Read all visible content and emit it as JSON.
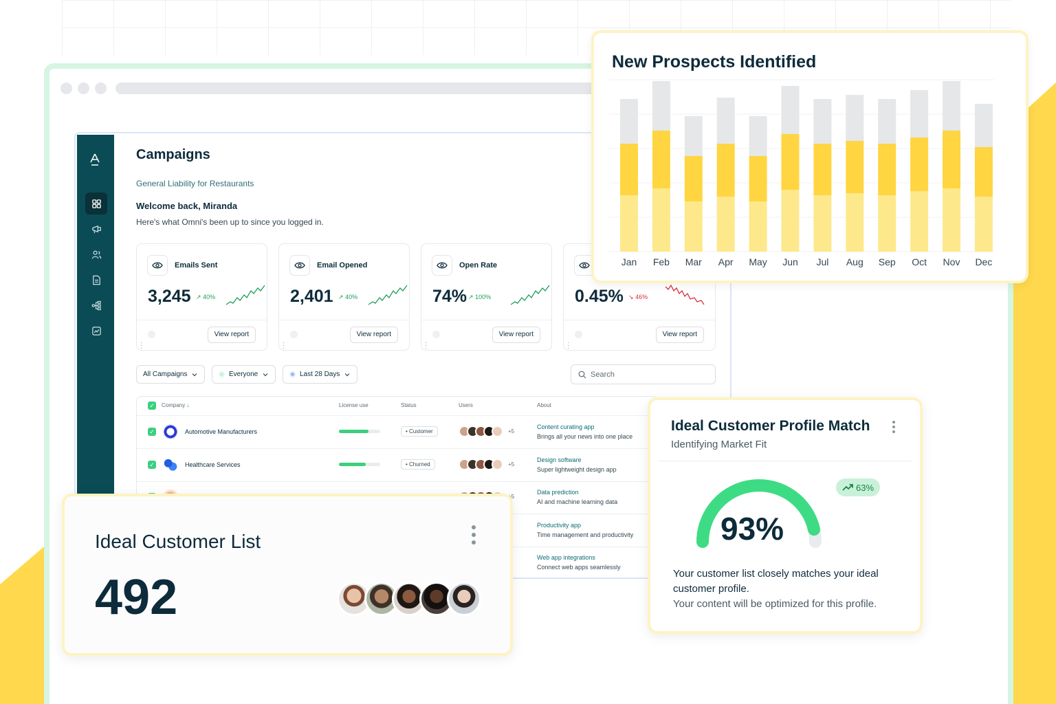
{
  "campaigns": {
    "title": "Campaigns",
    "subtitle": "General Liability for Restaurants",
    "welcome": "Welcome back, Miranda",
    "since": "Here's what Omni's been up to since you logged in."
  },
  "stats": [
    {
      "label": "Emails Sent",
      "value": "3,245",
      "change": "40%",
      "trend": "up",
      "button": "View report"
    },
    {
      "label": "Email Opened",
      "value": "2,401",
      "change": "40%",
      "trend": "up",
      "button": "View report"
    },
    {
      "label": "Open Rate",
      "value": "74%",
      "change": "100%",
      "trend": "up",
      "button": "View report"
    },
    {
      "label": "",
      "value": "0.45%",
      "change": "46%",
      "trend": "down",
      "button": "View report"
    }
  ],
  "filters": {
    "campaigns": "All Campaigns",
    "audience": "Everyone",
    "range": "Last 28 Days",
    "search_placeholder": "Search"
  },
  "table": {
    "headers": {
      "company": "Company",
      "license": "License use",
      "status": "Status",
      "users": "Users",
      "about": "About"
    },
    "rows": [
      {
        "company": "Automotive Manufacturers",
        "license": 0.72,
        "status": "Customer",
        "users_more": "+5",
        "about_title": "Content curating app",
        "about_desc": "Brings all your news into one place"
      },
      {
        "company": "Healthcare Services",
        "license": 0.65,
        "status": "Churned",
        "users_more": "+5",
        "about_title": "Design software",
        "about_desc": "Super lightweight design app"
      },
      {
        "company": "",
        "license": 0,
        "status": "",
        "users_more": "+5",
        "about_title": "Data prediction",
        "about_desc": "AI and machine learning data"
      },
      {
        "company": "",
        "license": 0,
        "status": "",
        "users_more": "",
        "about_title": "Productivity app",
        "about_desc": "Time management and productivity"
      },
      {
        "company": "",
        "license": 0,
        "status": "",
        "users_more": "",
        "about_title": "Web app integrations",
        "about_desc": "Connect web apps seamlessly"
      }
    ]
  },
  "prospects": {
    "title": "New Prospects Identified",
    "chart_data": {
      "type": "bar",
      "stacked": true,
      "categories": [
        "Jan",
        "Feb",
        "Mar",
        "Apr",
        "May",
        "Jun",
        "Jul",
        "Aug",
        "Sep",
        "Oct",
        "Nov",
        "Dec"
      ],
      "series": [
        {
          "values": [
            82,
            92,
            73,
            80,
            73,
            90,
            82,
            85,
            82,
            88,
            92,
            80
          ],
          "color": "#fde98c"
        },
        {
          "values": [
            75,
            84,
            66,
            77,
            66,
            81,
            75,
            76,
            75,
            78,
            84,
            72
          ],
          "color": "#ffd541"
        },
        {
          "values": [
            65,
            72,
            58,
            67,
            58,
            70,
            65,
            67,
            65,
            69,
            72,
            63
          ],
          "color": "#e5e7e8"
        }
      ],
      "ylim": [
        0,
        250
      ],
      "grid": true
    }
  },
  "icl": {
    "title": "Ideal Customer List",
    "count": "492"
  },
  "icp": {
    "title": "Ideal Customer Profile Match",
    "subtitle": "Identifying Market Fit",
    "match": "93%",
    "match_value": 0.93,
    "change": "63%",
    "desc": "Your customer list closely matches your ideal customer profile.",
    "note": "Your content will be optimized for this profile."
  },
  "colors": {
    "sidebar": "#0b4b55",
    "accent_green": "#3ccf80",
    "accent_yellow": "#ffd541"
  }
}
